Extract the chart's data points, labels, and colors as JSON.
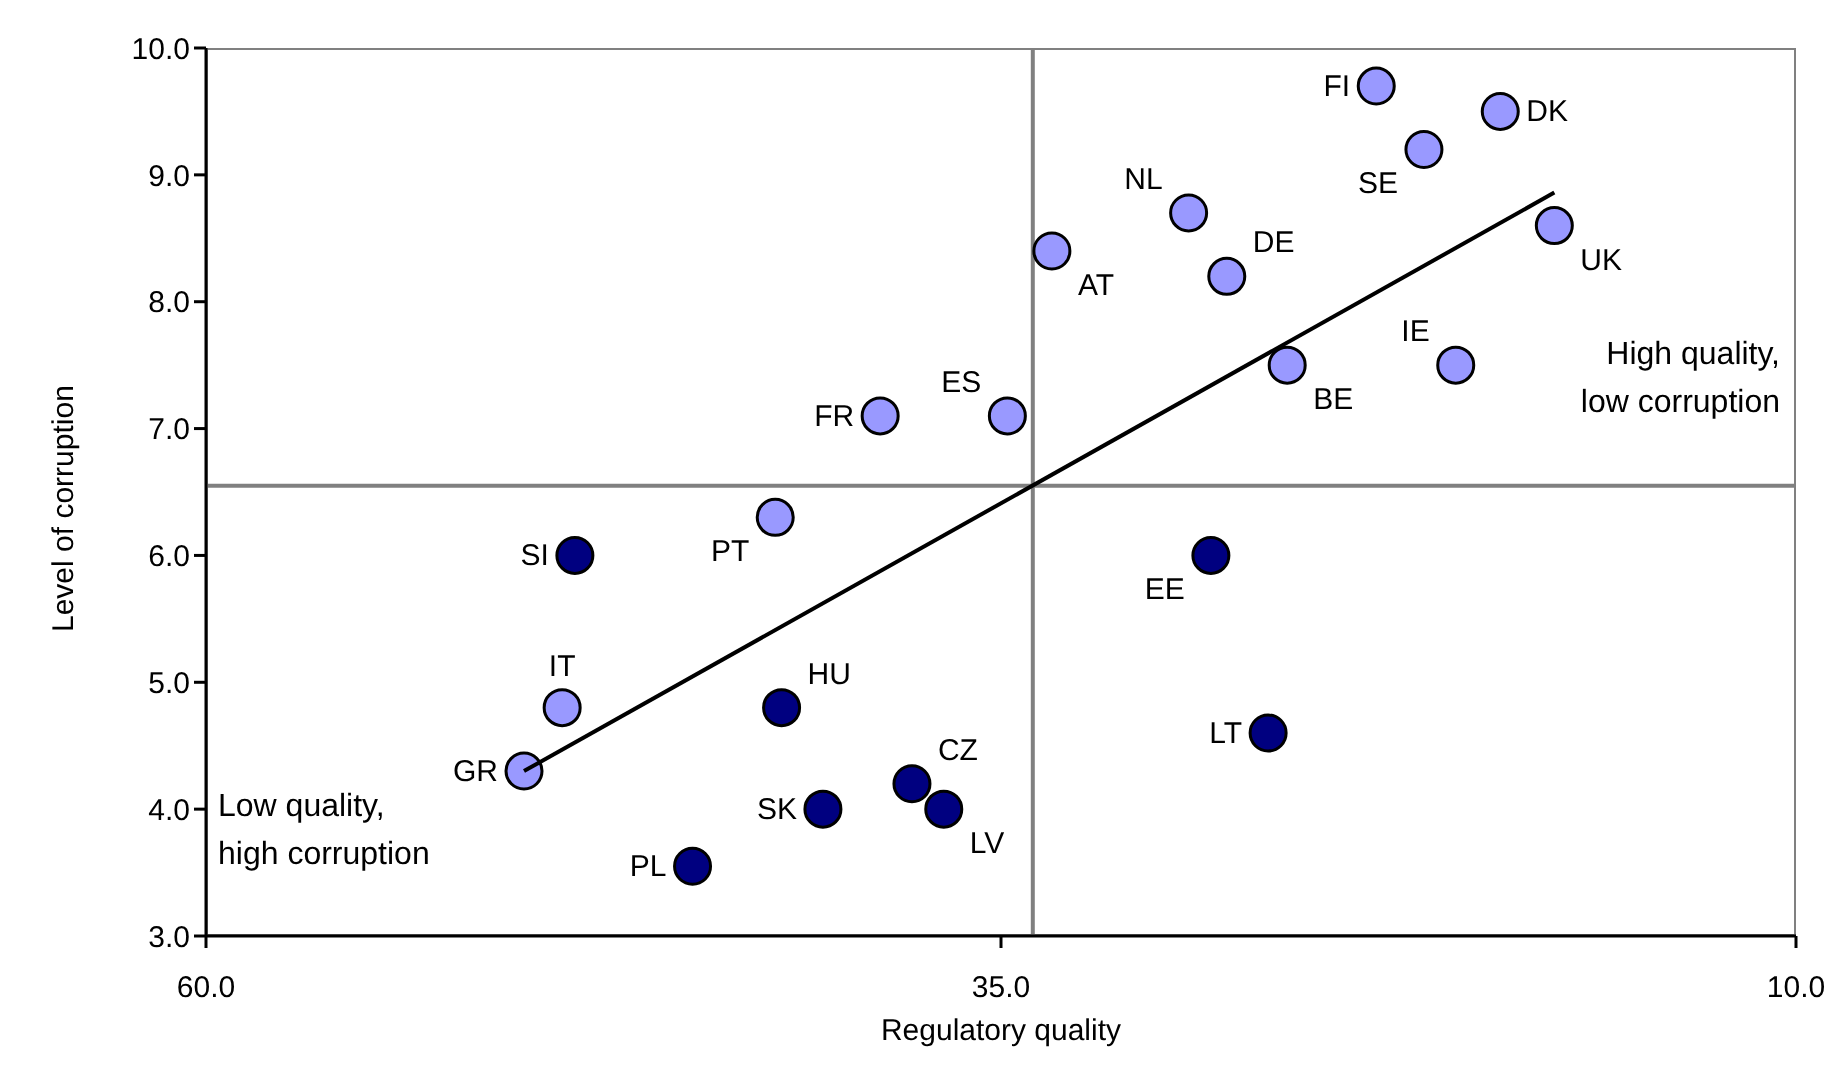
{
  "chart_data": {
    "type": "scatter",
    "xlabel": "Regulatory quality",
    "ylabel": "Level of corruption",
    "xlim": [
      60,
      10
    ],
    "xticks": [
      {
        "value": 60,
        "label": "60.0"
      },
      {
        "value": 35,
        "label": "35.0"
      },
      {
        "value": 10,
        "label": "10.0"
      }
    ],
    "ylim": [
      3,
      10
    ],
    "yticks": [
      {
        "value": 3,
        "label": "3.0"
      },
      {
        "value": 4,
        "label": "4.0"
      },
      {
        "value": 5,
        "label": "5.0"
      },
      {
        "value": 6,
        "label": "6.0"
      },
      {
        "value": 7,
        "label": "7.0"
      },
      {
        "value": 8,
        "label": "8.0"
      },
      {
        "value": 9,
        "label": "9.0"
      },
      {
        "value": 10,
        "label": "10.0"
      }
    ],
    "marker": "circle",
    "ref_lines": [
      {
        "axis": "x",
        "value": 34.0,
        "color": "#808080"
      },
      {
        "axis": "y",
        "value": 6.55,
        "color": "#808080"
      }
    ],
    "annotations": [
      "High quality,\nlow corruption",
      "Low quality,\nhigh corruption"
    ],
    "series": [
      {
        "name": "FI",
        "color": "#9999ff",
        "x": [
          23.2
        ],
        "values": [
          9.7
        ]
      },
      {
        "name": "DK",
        "color": "#9999ff",
        "x": [
          19.3
        ],
        "values": [
          9.5
        ]
      },
      {
        "name": "SE",
        "color": "#9999ff",
        "x": [
          21.7
        ],
        "values": [
          9.2
        ]
      },
      {
        "name": "NL",
        "color": "#9999ff",
        "x": [
          29.1
        ],
        "values": [
          8.7
        ]
      },
      {
        "name": "DE",
        "color": "#9999ff",
        "x": [
          27.9
        ],
        "values": [
          8.2
        ]
      },
      {
        "name": "AT",
        "color": "#9999ff",
        "x": [
          33.4
        ],
        "values": [
          8.4
        ]
      },
      {
        "name": "UK",
        "color": "#9999ff",
        "x": [
          17.6
        ],
        "values": [
          8.6
        ]
      },
      {
        "name": "BE",
        "color": "#9999ff",
        "x": [
          26.0
        ],
        "values": [
          7.5
        ]
      },
      {
        "name": "IE",
        "color": "#9999ff",
        "x": [
          20.7
        ],
        "values": [
          7.5
        ]
      },
      {
        "name": "ES",
        "color": "#9999ff",
        "x": [
          34.8
        ],
        "values": [
          7.1
        ]
      },
      {
        "name": "FR",
        "color": "#9999ff",
        "x": [
          38.8
        ],
        "values": [
          7.1
        ]
      },
      {
        "name": "PT",
        "color": "#9999ff",
        "x": [
          42.1
        ],
        "values": [
          6.3
        ]
      },
      {
        "name": "SI",
        "color": "#000080",
        "x": [
          48.4
        ],
        "values": [
          6.0
        ]
      },
      {
        "name": "IT",
        "color": "#9999ff",
        "x": [
          48.8
        ],
        "values": [
          4.8
        ]
      },
      {
        "name": "GR",
        "color": "#9999ff",
        "x": [
          50.0
        ],
        "values": [
          4.3
        ]
      },
      {
        "name": "HU",
        "color": "#000080",
        "x": [
          41.9
        ],
        "values": [
          4.8
        ]
      },
      {
        "name": "SK",
        "color": "#000080",
        "x": [
          40.6
        ],
        "values": [
          4.0
        ]
      },
      {
        "name": "CZ",
        "color": "#000080",
        "x": [
          37.8
        ],
        "values": [
          4.2
        ]
      },
      {
        "name": "LV",
        "color": "#000080",
        "x": [
          36.8
        ],
        "values": [
          4.0
        ]
      },
      {
        "name": "PL",
        "color": "#000080",
        "x": [
          44.7
        ],
        "values": [
          3.55
        ]
      },
      {
        "name": "EE",
        "color": "#000080",
        "x": [
          28.4
        ],
        "values": [
          6.0
        ]
      },
      {
        "name": "LT",
        "color": "#000080",
        "x": [
          26.6
        ],
        "values": [
          4.6
        ]
      },
      {
        "type": "line",
        "marker": "none",
        "color": "#000000",
        "x": [
          50.0,
          17.6
        ],
        "values": [
          4.3,
          8.86
        ]
      }
    ]
  }
}
